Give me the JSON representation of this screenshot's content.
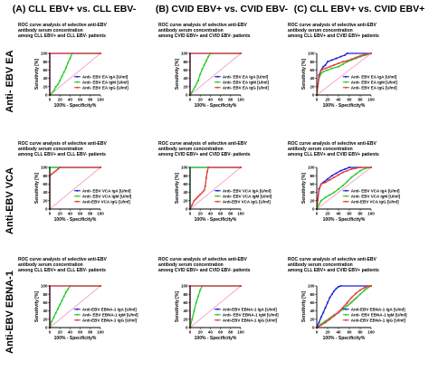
{
  "columns": [
    "(A) CLL EBV+ vs. CLL EBV-",
    "(B) CVID EBV+ vs. CVID EBV-",
    "(C) CLL EBV+ vs. CVID EBV+"
  ],
  "rows": [
    "Anti- EBV EA",
    "Anti-EBV VCA",
    "Anti-EBV EBNA-1"
  ],
  "colors": {
    "IgA": "#1f1fd6",
    "IgM": "#22cc22",
    "IgG": "#e23b3b",
    "reference": "#f2a3c4",
    "axis": "#000000"
  },
  "chart_data": [
    {
      "type": "line",
      "id": "A1",
      "title": [
        "ROC curve analysis of selective anti-EBV",
        "antibody serum concentration",
        "among CLL EBV+ and CLL EBV- patients"
      ],
      "xlabel": "100% - Specificity%",
      "ylabel": "Sensitivity [%]",
      "xlim": [
        0,
        100
      ],
      "ylim": [
        0,
        100
      ],
      "ticks": [
        0,
        20,
        40,
        60,
        80,
        100
      ],
      "legend_position": "bottom-right",
      "series": [
        {
          "name": "Anti- EBV EA IgA [U/ml]",
          "key": "IgA",
          "x": [
            0,
            0,
            100
          ],
          "y": [
            0,
            100,
            100
          ]
        },
        {
          "name": "Anti- EBV EA IgM [U/ml]",
          "key": "IgM",
          "x": [
            0,
            8,
            12,
            16,
            20,
            24,
            28,
            32,
            36,
            40,
            44,
            100
          ],
          "y": [
            0,
            10,
            20,
            25,
            35,
            45,
            55,
            65,
            78,
            88,
            100,
            100
          ]
        },
        {
          "name": "Anti- EBV EA IgG [U/ml]",
          "key": "IgG",
          "x": [
            0,
            0,
            100
          ],
          "y": [
            0,
            100,
            100
          ]
        }
      ]
    },
    {
      "type": "line",
      "id": "B1",
      "title": [
        "ROC curve analysis of selective anti-EBV",
        "antibody serum concentration",
        "among CVID EBV+ and CVID EBV- patients"
      ],
      "xlabel": "100% - Specificity%",
      "ylabel": "Sensitivity [%]",
      "xlim": [
        0,
        100
      ],
      "ylim": [
        0,
        100
      ],
      "ticks": [
        0,
        20,
        40,
        60,
        80,
        100
      ],
      "legend_position": "bottom-right",
      "series": [
        {
          "name": "Anti- EBV EA IgA [U/ml]",
          "key": "IgA",
          "x": [
            0,
            0,
            100
          ],
          "y": [
            0,
            100,
            100
          ]
        },
        {
          "name": "Anti- EBV EA IgM [U/ml]",
          "key": "IgM",
          "x": [
            0,
            10,
            16,
            20,
            24,
            28,
            32,
            36,
            40,
            100
          ],
          "y": [
            0,
            20,
            35,
            50,
            62,
            72,
            82,
            92,
            100,
            100
          ]
        },
        {
          "name": "Anti- EBV EA IgG [U/ml]",
          "key": "IgG",
          "x": [
            0,
            0,
            100
          ],
          "y": [
            0,
            100,
            100
          ]
        }
      ]
    },
    {
      "type": "line",
      "id": "C1",
      "title": [
        "ROC curve analysis of selective anti-EBV",
        "antibody serum concentration",
        "among CLL EBV+ and CVID EBV+ patients"
      ],
      "xlabel": "100% - Specificity%",
      "ylabel": "Sensitivity [%]",
      "xlim": [
        0,
        100
      ],
      "ylim": [
        0,
        100
      ],
      "ticks": [
        0,
        20,
        40,
        60,
        80,
        100
      ],
      "legend_position": "bottom-right",
      "series": [
        {
          "name": "Anti- EBV EA IgA [U/ml]",
          "key": "IgA",
          "x": [
            0,
            4,
            8,
            12,
            16,
            20,
            28,
            36,
            44,
            52,
            56,
            100
          ],
          "y": [
            0,
            48,
            60,
            68,
            72,
            80,
            84,
            88,
            92,
            96,
            100,
            100
          ]
        },
        {
          "name": "Anti- EBV EA IgM [U/ml]",
          "key": "IgM",
          "x": [
            0,
            4,
            8,
            12,
            20,
            28,
            40,
            48,
            56,
            64,
            72,
            80,
            90,
            100
          ],
          "y": [
            0,
            40,
            52,
            56,
            60,
            64,
            68,
            74,
            80,
            84,
            88,
            92,
            96,
            100
          ]
        },
        {
          "name": "Anti- EBV EA IgG [U/ml]",
          "key": "IgG",
          "x": [
            0,
            4,
            8,
            16,
            24,
            32,
            40,
            48,
            56,
            64,
            72,
            80,
            90,
            100
          ],
          "y": [
            0,
            44,
            60,
            64,
            68,
            72,
            76,
            80,
            82,
            86,
            90,
            94,
            98,
            100
          ]
        }
      ]
    },
    {
      "type": "line",
      "id": "A2",
      "title": [
        "ROC curve analysis of selective anti-EBV",
        "antibody serum concentration",
        "among CLL EBV+ and CLL EBV- patients"
      ],
      "xlabel": "100% - Specificity%",
      "ylabel": "Sensitivity [%]",
      "xlim": [
        0,
        100
      ],
      "ylim": [
        0,
        100
      ],
      "ticks": [
        0,
        20,
        40,
        60,
        80,
        100
      ],
      "legend_position": "bottom-right",
      "series": [
        {
          "name": "Anti- EBV VCA IgA [U/ml]",
          "key": "IgA",
          "x": [
            0,
            0,
            100
          ],
          "y": [
            0,
            100,
            100
          ]
        },
        {
          "name": "Anti- EBV VCA IgM [U/ml]",
          "key": "IgM",
          "x": [
            0,
            0,
            100
          ],
          "y": [
            0,
            100,
            100
          ]
        },
        {
          "name": "Anti-EBV VCA IgG [U/ml]",
          "key": "IgG",
          "x": [
            0,
            0,
            4,
            8,
            12,
            16,
            20,
            100
          ],
          "y": [
            0,
            80,
            84,
            88,
            92,
            96,
            100,
            100
          ]
        }
      ]
    },
    {
      "type": "line",
      "id": "B2",
      "title": [
        "ROC curve analysis of selective anti-EBV",
        "antibody serum concentration",
        "among CVID EBV+ and CVID EBV- patients"
      ],
      "xlabel": "100% - Specificity%",
      "ylabel": "Sensitivity [%]",
      "xlim": [
        0,
        100
      ],
      "ylim": [
        0,
        100
      ],
      "ticks": [
        0,
        20,
        40,
        60,
        80,
        100
      ],
      "legend_position": "bottom-right",
      "series": [
        {
          "name": "Anti- EBV VCA IgA [U/ml]",
          "key": "IgA",
          "x": [
            0,
            0,
            100
          ],
          "y": [
            0,
            100,
            100
          ]
        },
        {
          "name": "Anti- EBV VCA IgM [U/ml]",
          "key": "IgM",
          "x": [
            0,
            0,
            100
          ],
          "y": [
            0,
            100,
            100
          ]
        },
        {
          "name": "Anti-EBV VCA IgG [U/ml]",
          "key": "IgG",
          "x": [
            0,
            4,
            8,
            12,
            16,
            20,
            24,
            28,
            30,
            32,
            34,
            36,
            100
          ],
          "y": [
            0,
            10,
            20,
            25,
            30,
            35,
            40,
            45,
            55,
            75,
            90,
            100,
            100
          ]
        }
      ]
    },
    {
      "type": "line",
      "id": "C2",
      "title": [
        "ROC curve analysis of selective anti-EBV",
        "antibody serum concentration",
        "among CLL EBV+ and CVID EBV+ patients"
      ],
      "xlabel": "100% - Specificity%",
      "ylabel": "Sensitivity [%]",
      "xlim": [
        0,
        100
      ],
      "ylim": [
        0,
        100
      ],
      "ticks": [
        0,
        20,
        40,
        60,
        80,
        100
      ],
      "legend_position": "bottom-right",
      "series": [
        {
          "name": "Anti- EBV VCA IgA [U/ml]",
          "key": "IgA",
          "x": [
            0,
            4,
            8,
            12,
            20,
            28,
            36,
            44,
            52,
            60,
            100
          ],
          "y": [
            0,
            48,
            60,
            64,
            72,
            80,
            86,
            92,
            96,
            100,
            100
          ]
        },
        {
          "name": "Anti- EBV VCA IgM [U/ml]",
          "key": "IgM",
          "x": [
            0,
            8,
            16,
            24,
            32,
            40,
            48,
            56,
            64,
            72,
            80,
            90,
            100
          ],
          "y": [
            0,
            20,
            28,
            34,
            40,
            48,
            56,
            66,
            76,
            84,
            92,
            98,
            100
          ]
        },
        {
          "name": "Anti-EBV VCA IgG [U/ml]",
          "key": "IgG",
          "x": [
            0,
            4,
            8,
            16,
            24,
            32,
            40,
            48,
            56,
            64,
            72,
            80,
            100
          ],
          "y": [
            0,
            44,
            60,
            64,
            70,
            76,
            82,
            88,
            92,
            96,
            98,
            100,
            100
          ]
        }
      ]
    },
    {
      "type": "line",
      "id": "A3",
      "title": [
        "ROC curve analysis of selective anti-EBV",
        "antibody serum concentration",
        "among CLL EBV+ and CLL EBV- patients"
      ],
      "xlabel": "100% - Specificity%",
      "ylabel": "Sensitivity [%]",
      "xlim": [
        0,
        100
      ],
      "ylim": [
        0,
        100
      ],
      "ticks": [
        0,
        20,
        40,
        60,
        80,
        100
      ],
      "legend_position": "bottom-right",
      "series": [
        {
          "name": "Anti-EBV EBNA-1 IgA [U/ml]",
          "key": "IgA",
          "x": [
            0,
            0,
            100
          ],
          "y": [
            0,
            100,
            100
          ]
        },
        {
          "name": "Anti- EBV EBNA-1 IgM [U/ml]",
          "key": "IgM",
          "x": [
            0,
            4,
            8,
            12,
            16,
            20,
            24,
            28,
            32,
            36,
            40,
            100
          ],
          "y": [
            0,
            15,
            25,
            35,
            45,
            55,
            65,
            75,
            85,
            92,
            100,
            100
          ]
        },
        {
          "name": "Anti-EBV EBNA-1 IgG [U/ml]",
          "key": "IgG",
          "x": [
            0,
            0,
            100
          ],
          "y": [
            0,
            100,
            100
          ]
        }
      ]
    },
    {
      "type": "line",
      "id": "B3",
      "title": [
        "ROC curve analysis of selective anti-EBV",
        "antibody serum concentration",
        "among CVID EBV+ and CVID EBV- patients"
      ],
      "xlabel": "100% - Specificity%",
      "ylabel": "Sensitivity [%]",
      "xlim": [
        0,
        100
      ],
      "ylim": [
        0,
        100
      ],
      "ticks": [
        0,
        20,
        40,
        60,
        80,
        100
      ],
      "legend_position": "bottom-right",
      "series": [
        {
          "name": "Anti-EBV EBNA-1 IgA [U/ml]",
          "key": "IgA",
          "x": [
            0,
            0,
            100
          ],
          "y": [
            0,
            100,
            100
          ]
        },
        {
          "name": "Anti- EBV EBNA-1 IgM [U/ml]",
          "key": "IgM",
          "x": [
            0,
            4,
            8,
            12,
            16,
            20,
            24,
            100
          ],
          "y": [
            0,
            20,
            40,
            60,
            75,
            90,
            100,
            100
          ]
        },
        {
          "name": "Anti-EBV EBNA-1 IgG [U/ml]",
          "key": "IgG",
          "x": [
            0,
            0,
            100
          ],
          "y": [
            0,
            100,
            100
          ]
        }
      ]
    },
    {
      "type": "line",
      "id": "C3",
      "title": [
        "ROC curve analysis of selective anti-EBV",
        "antibody serum concentration",
        "among CLL EBV+ and CVID EBV+ patients"
      ],
      "xlabel": "100% - Specificity%",
      "ylabel": "Sensitivity [%]",
      "xlim": [
        0,
        100
      ],
      "ylim": [
        0,
        100
      ],
      "ticks": [
        0,
        20,
        40,
        60,
        80,
        100
      ],
      "legend_position": "bottom-right",
      "series": [
        {
          "name": "Anti-EBV EBNA-1 IgA [U/ml]",
          "key": "IgA",
          "x": [
            0,
            4,
            8,
            12,
            16,
            20,
            24,
            28,
            32,
            36,
            40,
            44,
            100
          ],
          "y": [
            0,
            12,
            25,
            36,
            48,
            60,
            72,
            80,
            88,
            94,
            98,
            100,
            100
          ]
        },
        {
          "name": "Anti- EBV EBNA-1 IgM [U/ml]",
          "key": "IgM",
          "x": [
            0,
            8,
            16,
            24,
            32,
            40,
            48,
            56,
            64,
            72,
            80,
            88,
            96,
            100
          ],
          "y": [
            0,
            8,
            16,
            22,
            30,
            36,
            44,
            52,
            60,
            70,
            80,
            90,
            98,
            100
          ]
        },
        {
          "name": "Anti-EBV EBNA-1 IgG [U/ml]",
          "key": "IgG",
          "x": [
            0,
            8,
            16,
            24,
            32,
            40,
            48,
            56,
            64,
            72,
            80,
            88,
            96,
            100
          ],
          "y": [
            0,
            6,
            12,
            20,
            28,
            36,
            48,
            60,
            72,
            82,
            90,
            96,
            100,
            100
          ]
        }
      ]
    }
  ]
}
